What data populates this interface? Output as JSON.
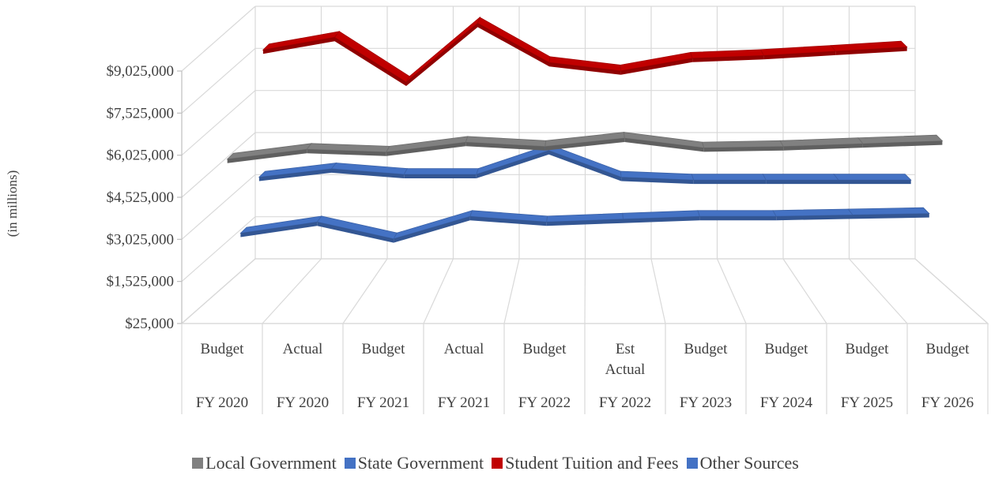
{
  "chart_data": {
    "type": "line",
    "style": "3d-ribbon",
    "ylabel": "(in millions)",
    "ylim": [
      25000,
      9025000
    ],
    "y_ticks": [
      "$25,000",
      "$1,525,000",
      "$3,025,000",
      "$4,525,000",
      "$6,025,000",
      "$7,525,000",
      "$9,025,000"
    ],
    "y_tick_values": [
      25000,
      1525000,
      3025000,
      4525000,
      6025000,
      7525000,
      9025000
    ],
    "categories": [
      {
        "type": "Budget",
        "year": "FY 2020"
      },
      {
        "type": "Actual",
        "year": "FY 2020"
      },
      {
        "type": "Budget",
        "year": "FY 2021"
      },
      {
        "type": "Actual",
        "year": "FY 2021"
      },
      {
        "type": "Budget",
        "year": "FY 2022"
      },
      {
        "type": "Est Actual",
        "year": "FY 2022"
      },
      {
        "type": "Budget",
        "year": "FY 2023"
      },
      {
        "type": "Budget",
        "year": "FY 2024"
      },
      {
        "type": "Budget",
        "year": "FY 2025"
      },
      {
        "type": "Budget",
        "year": "FY 2026"
      }
    ],
    "series": [
      {
        "name": "Other Sources",
        "color": "#4472c4",
        "values": [
          2600000,
          3000000,
          2400000,
          3200000,
          3000000,
          3100000,
          3200000,
          3200000,
          3250000,
          3300000
        ]
      },
      {
        "name": "State Government",
        "color": "#4472c4",
        "values": [
          3950000,
          4250000,
          4050000,
          4050000,
          4900000,
          3950000,
          3850000,
          3850000,
          3850000,
          3850000
        ]
      },
      {
        "name": "Local Government",
        "color": "#808080",
        "values": [
          5700000,
          6050000,
          5950000,
          6300000,
          6150000,
          6450000,
          6100000,
          6150000,
          6250000,
          6350000
        ]
      },
      {
        "name": "Student Tuition and Fees",
        "color": "#c00000",
        "values": [
          8350000,
          8800000,
          7200000,
          9300000,
          7900000,
          7600000,
          8050000,
          8150000,
          8300000,
          8450000
        ]
      }
    ],
    "legend": {
      "position": "bottom",
      "items": [
        {
          "name": "Local Government",
          "color": "#808080"
        },
        {
          "name": "State Government",
          "color": "#4472c4"
        },
        {
          "name": "Student Tuition and Fees",
          "color": "#c00000"
        },
        {
          "name": "Other Sources",
          "color": "#4472c4"
        }
      ]
    },
    "grid": true
  }
}
